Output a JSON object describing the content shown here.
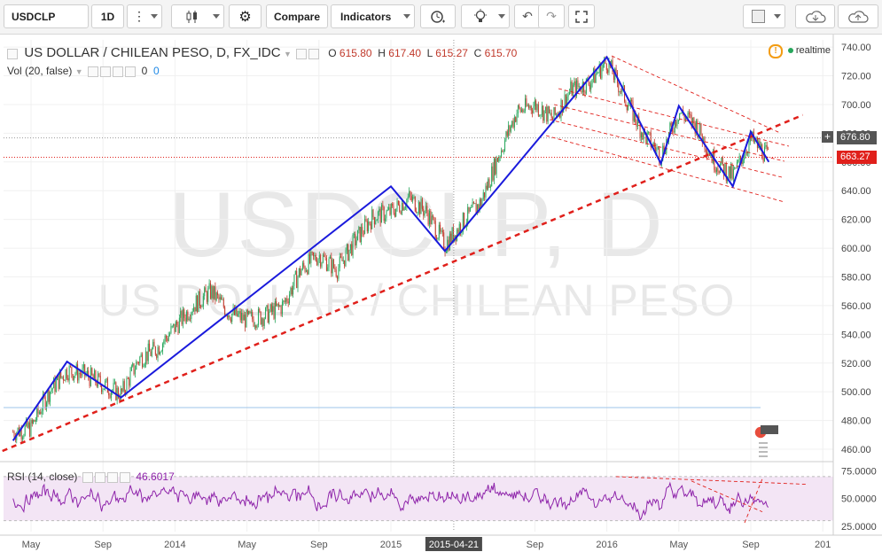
{
  "toolbar": {
    "symbol": "USDCLP",
    "interval": "1D",
    "compare_label": "Compare",
    "indicators_label": "Indicators",
    "icons": [
      "more-vertical-icon",
      "candlestick-icon",
      "gear-icon",
      "alert-clock-icon",
      "lightbulb-icon",
      "undo-icon",
      "redo-icon",
      "fullscreen-icon",
      "color-square-icon",
      "cloud-download-icon",
      "cloud-upload-icon"
    ]
  },
  "legend": {
    "title": "US DOLLAR / CHILEAN PESO, D, FX_IDC",
    "o_label": "O",
    "o": "615.80",
    "h_label": "H",
    "h": "617.40",
    "l_label": "L",
    "l": "615.27",
    "c_label": "C",
    "c": "615.70",
    "vol_label": "Vol (20, false)",
    "vol_v1": "0",
    "vol_v2": "0",
    "realtime": "realtime",
    "rsi_label": "RSI (14, close)",
    "rsi_value": "46.6017"
  },
  "watermark": {
    "line1": "USDCLP, D",
    "line2": "US DOLLAR / CHILEAN PESO"
  },
  "price_tags": {
    "crosshair": "676.80",
    "last": "663.27"
  },
  "colors": {
    "up": "#26a65b",
    "down": "#c0392b",
    "zigzag": "#1a1adc",
    "trend": "#e0201b",
    "rsi": "#8e24aa",
    "rsi_band": "#f3e5f5"
  },
  "chart_data": {
    "type": "line",
    "title": "US DOLLAR / CHILEAN PESO, D, FX_IDC",
    "x_axis": {
      "ticks": [
        "May",
        "Sep",
        "2014",
        "May",
        "Sep",
        "2015",
        "2015-04-21",
        "Sep",
        "2016",
        "May",
        "Sep",
        "201"
      ]
    },
    "y_axis": {
      "ylim": [
        452,
        745
      ],
      "ticks": [
        "460.00",
        "480.00",
        "500.00",
        "520.00",
        "540.00",
        "560.00",
        "580.00",
        "600.00",
        "620.00",
        "640.00",
        "660.00",
        "680.00",
        "700.00",
        "720.00",
        "740.00"
      ]
    },
    "series": [
      {
        "type": "candlestick",
        "approx_close_path": [
          [
            "2013-04",
            472
          ],
          [
            "2013-05",
            475
          ],
          [
            "2013-06",
            500
          ],
          [
            "2013-07",
            515
          ],
          [
            "2013-08",
            512
          ],
          [
            "2013-09",
            505
          ],
          [
            "2013-10",
            498
          ],
          [
            "2013-11",
            523
          ],
          [
            "2013-12",
            530
          ],
          [
            "2014-01",
            545
          ],
          [
            "2014-02",
            560
          ],
          [
            "2014-03",
            570
          ],
          [
            "2014-04",
            555
          ],
          [
            "2014-05",
            550
          ],
          [
            "2014-06",
            553
          ],
          [
            "2014-07",
            560
          ],
          [
            "2014-08",
            585
          ],
          [
            "2014-09",
            595
          ],
          [
            "2014-10",
            585
          ],
          [
            "2014-11",
            605
          ],
          [
            "2014-12",
            622
          ],
          [
            "2015-01",
            625
          ],
          [
            "2015-02",
            635
          ],
          [
            "2015-03",
            625
          ],
          [
            "2015-04",
            602
          ],
          [
            "2015-05",
            618
          ],
          [
            "2015-06",
            632
          ],
          [
            "2015-07",
            665
          ],
          [
            "2015-08",
            695
          ],
          [
            "2015-09",
            700
          ],
          [
            "2015-10",
            690
          ],
          [
            "2015-11",
            710
          ],
          [
            "2015-12",
            715
          ],
          [
            "2016-01",
            730
          ],
          [
            "2016-02",
            705
          ],
          [
            "2016-03",
            680
          ],
          [
            "2016-04",
            665
          ],
          [
            "2016-05",
            695
          ],
          [
            "2016-06",
            685
          ],
          [
            "2016-07",
            660
          ],
          [
            "2016-08",
            650
          ],
          [
            "2016-09",
            676
          ],
          [
            "2016-10",
            663
          ]
        ]
      }
    ],
    "annotations": {
      "zigzag": [
        [
          "2013-04",
          466
        ],
        [
          "2013-07",
          521
        ],
        [
          "2013-10",
          496
        ],
        [
          "2015-01",
          643
        ],
        [
          "2015-04",
          598
        ],
        [
          "2016-01",
          733
        ],
        [
          "2016-04",
          659
        ],
        [
          "2016-05",
          699
        ],
        [
          "2016-08",
          643
        ],
        [
          "2016-09",
          681
        ],
        [
          "2016-10",
          660
        ]
      ],
      "trendline": [
        [
          "2013-04",
          460
        ],
        [
          "2016-11",
          689
        ]
      ],
      "horizontal_lines": [
        676.8,
        663.27,
        489
      ],
      "vertical_marker": "2015-04-21"
    },
    "rsi": {
      "label": "RSI (14, close)",
      "value": 46.6017,
      "band": [
        30,
        70
      ],
      "ylim": [
        20,
        82
      ],
      "ticks": [
        "25.0000",
        "50.0000",
        "75.0000"
      ]
    }
  }
}
